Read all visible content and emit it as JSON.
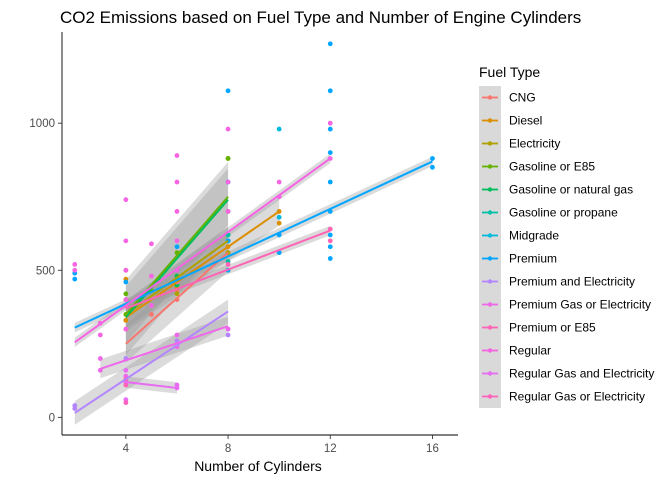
{
  "chart_data": {
    "type": "scatter",
    "title": "CO2 Emissions based on Fuel Type and Number of Engine Cylinders",
    "xlabel": "Number of Cylinders",
    "ylabel": "",
    "xlim": [
      1.5,
      17
    ],
    "ylim": [
      -60,
      1310
    ],
    "xticks": [
      4,
      8,
      12,
      16
    ],
    "yticks": [
      0,
      500,
      1000
    ],
    "grid": false,
    "legend_title": "Fuel Type",
    "legend_position": "right",
    "series": [
      {
        "name": "CNG",
        "color": "#F8766D",
        "points": [
          [
            4,
            300
          ],
          [
            4,
            330
          ],
          [
            4,
            380
          ],
          [
            5,
            350
          ],
          [
            6,
            400
          ],
          [
            6,
            430
          ],
          [
            8,
            530
          ],
          [
            8,
            560
          ]
        ],
        "fit": [
          [
            4,
            250
          ],
          [
            8,
            560
          ]
        ],
        "se": 40
      },
      {
        "name": "Diesel",
        "color": "#DB8E00",
        "points": [
          [
            4,
            330
          ],
          [
            4,
            400
          ],
          [
            4,
            470
          ],
          [
            4,
            500
          ],
          [
            6,
            440
          ],
          [
            6,
            480
          ],
          [
            8,
            580
          ],
          [
            10,
            660
          ],
          [
            10,
            700
          ]
        ],
        "fit": [
          [
            4,
            340
          ],
          [
            10,
            700
          ]
        ],
        "se": 30
      },
      {
        "name": "Electricity",
        "color": "#AEA200",
        "points": [
          [
            4,
            350
          ],
          [
            6,
            420
          ],
          [
            6,
            450
          ],
          [
            8,
            500
          ],
          [
            8,
            560
          ],
          [
            8,
            880
          ]
        ],
        "fit": [
          [
            4,
            350
          ],
          [
            8,
            600
          ]
        ],
        "se": 30
      },
      {
        "name": "Gasoline or E85",
        "color": "#64B200",
        "points": [
          [
            4,
            350
          ],
          [
            4,
            420
          ],
          [
            5,
            430
          ],
          [
            6,
            500
          ],
          [
            6,
            560
          ],
          [
            8,
            620
          ],
          [
            8,
            700
          ],
          [
            8,
            880
          ]
        ],
        "fit": [
          [
            4,
            350
          ],
          [
            8,
            750
          ]
        ],
        "se": 60
      },
      {
        "name": "Gasoline or natural gas",
        "color": "#00BD5C",
        "points": [
          [
            6,
            450
          ],
          [
            6,
            480
          ],
          [
            8,
            600
          ]
        ],
        "fit": [
          [
            4,
            340
          ],
          [
            8,
            740
          ]
        ],
        "se": 80
      },
      {
        "name": "Gasoline or propane",
        "color": "#00C1A7",
        "points": [
          [
            6,
            470
          ],
          [
            8,
            530
          ],
          [
            8,
            620
          ]
        ],
        "fit": [],
        "se": 0
      },
      {
        "name": "Midgrade",
        "color": "#00BADE",
        "points": [
          [
            4,
            380
          ],
          [
            6,
            460
          ],
          [
            8,
            600
          ],
          [
            10,
            680
          ],
          [
            10,
            980
          ]
        ],
        "fit": [],
        "se": 0
      },
      {
        "name": "Premium",
        "color": "#00A6FF",
        "points": [
          [
            2,
            470
          ],
          [
            2,
            490
          ],
          [
            4,
            380
          ],
          [
            4,
            460
          ],
          [
            6,
            500
          ],
          [
            6,
            580
          ],
          [
            8,
            500
          ],
          [
            8,
            600
          ],
          [
            8,
            800
          ],
          [
            8,
            1110
          ],
          [
            10,
            560
          ],
          [
            10,
            620
          ],
          [
            12,
            540
          ],
          [
            12,
            580
          ],
          [
            12,
            620
          ],
          [
            12,
            700
          ],
          [
            12,
            800
          ],
          [
            12,
            900
          ],
          [
            12,
            980
          ],
          [
            12,
            1110
          ],
          [
            12,
            1270
          ],
          [
            16,
            850
          ],
          [
            16,
            880
          ]
        ],
        "fit": [
          [
            2,
            305
          ],
          [
            16,
            870
          ]
        ],
        "se": 10
      },
      {
        "name": "Premium and Electricity",
        "color": "#B385FF",
        "points": [
          [
            2,
            30
          ],
          [
            2,
            40
          ],
          [
            4,
            120
          ],
          [
            4,
            200
          ],
          [
            6,
            260
          ],
          [
            8,
            280
          ],
          [
            8,
            300
          ]
        ],
        "fit": [
          [
            2,
            15
          ],
          [
            8,
            360
          ]
        ],
        "se": 25
      },
      {
        "name": "Premium Gas or Electricity",
        "color": "#EF67EB",
        "points": [
          [
            3,
            160
          ],
          [
            3,
            200
          ],
          [
            4,
            120
          ],
          [
            4,
            140
          ],
          [
            6,
            240
          ],
          [
            6,
            280
          ],
          [
            8,
            300
          ]
        ],
        "fit": [
          [
            3,
            165
          ],
          [
            8,
            310
          ]
        ],
        "se": 20
      },
      {
        "name": "Premium or E85",
        "color": "#FF63B6",
        "points": [
          [
            4,
            380
          ],
          [
            6,
            460
          ],
          [
            8,
            520
          ],
          [
            12,
            600
          ],
          [
            12,
            640
          ]
        ],
        "fit": [
          [
            4,
            370
          ],
          [
            12,
            635
          ]
        ],
        "se": 10
      },
      {
        "name": "Regular",
        "color": "#F564E3",
        "points": [
          [
            2,
            500
          ],
          [
            2,
            520
          ],
          [
            3,
            280
          ],
          [
            3,
            320
          ],
          [
            4,
            300
          ],
          [
            4,
            400
          ],
          [
            4,
            500
          ],
          [
            4,
            600
          ],
          [
            4,
            740
          ],
          [
            5,
            380
          ],
          [
            5,
            480
          ],
          [
            5,
            590
          ],
          [
            6,
            500
          ],
          [
            6,
            600
          ],
          [
            6,
            700
          ],
          [
            6,
            800
          ],
          [
            6,
            890
          ],
          [
            8,
            700
          ],
          [
            8,
            800
          ],
          [
            8,
            980
          ],
          [
            10,
            750
          ],
          [
            10,
            800
          ],
          [
            12,
            880
          ],
          [
            12,
            1000
          ]
        ],
        "fit": [
          [
            2,
            255
          ],
          [
            12,
            880
          ]
        ],
        "se": 10
      },
      {
        "name": "Regular Gas and Electricity",
        "color": "#E76BF3",
        "points": [
          [
            4,
            60
          ],
          [
            4,
            120
          ],
          [
            4,
            160
          ],
          [
            6,
            100
          ],
          [
            6,
            110
          ]
        ],
        "fit": [
          [
            4,
            120
          ],
          [
            6,
            100
          ]
        ],
        "se": 12
      },
      {
        "name": "Regular Gas or Electricity",
        "color": "#FF62BC",
        "points": [
          [
            4,
            50
          ],
          [
            4,
            110
          ],
          [
            4,
            130
          ]
        ],
        "fit": [],
        "se": 0
      }
    ]
  }
}
